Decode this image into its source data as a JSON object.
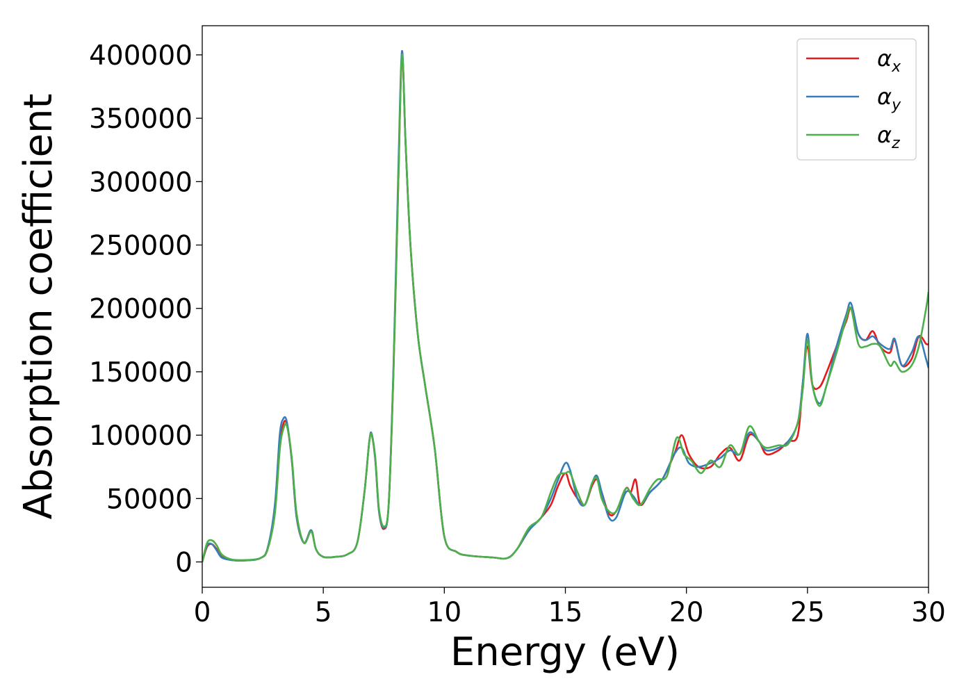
{
  "chart_data": {
    "type": "line",
    "title": "",
    "xlabel": "Energy (eV)",
    "ylabel": "Absorption coefficient",
    "xlim": [
      0,
      30
    ],
    "ylim": [
      -20000,
      423000
    ],
    "xticks": [
      0,
      5,
      10,
      15,
      20,
      25,
      30
    ],
    "yticks": [
      0,
      50000,
      100000,
      150000,
      200000,
      250000,
      300000,
      350000,
      400000
    ],
    "grid": false,
    "legend_position": "top-right",
    "series": [
      {
        "name": "αx",
        "symbol": "α",
        "subscript": "x",
        "color": "#e41a1c",
        "points": [
          [
            0,
            0
          ],
          [
            0.2,
            12000
          ],
          [
            0.4,
            14000
          ],
          [
            0.6,
            10000
          ],
          [
            0.8,
            4000
          ],
          [
            1.2,
            1500
          ],
          [
            1.8,
            1200
          ],
          [
            2.4,
            3000
          ],
          [
            2.7,
            10000
          ],
          [
            3.0,
            40000
          ],
          [
            3.2,
            90000
          ],
          [
            3.35,
            109000
          ],
          [
            3.5,
            108000
          ],
          [
            3.7,
            80000
          ],
          [
            3.9,
            35000
          ],
          [
            4.2,
            15000
          ],
          [
            4.5,
            25000
          ],
          [
            4.7,
            10000
          ],
          [
            5.0,
            4000
          ],
          [
            5.5,
            4000
          ],
          [
            6.0,
            6000
          ],
          [
            6.4,
            15000
          ],
          [
            6.7,
            55000
          ],
          [
            6.9,
            95000
          ],
          [
            7.0,
            100000
          ],
          [
            7.15,
            80000
          ],
          [
            7.3,
            40000
          ],
          [
            7.5,
            26000
          ],
          [
            7.7,
            45000
          ],
          [
            7.9,
            150000
          ],
          [
            8.1,
            300000
          ],
          [
            8.25,
            400000
          ],
          [
            8.4,
            330000
          ],
          [
            8.6,
            250000
          ],
          [
            8.9,
            180000
          ],
          [
            9.2,
            140000
          ],
          [
            9.6,
            90000
          ],
          [
            10.0,
            20000
          ],
          [
            10.5,
            8000
          ],
          [
            11.0,
            5000
          ],
          [
            12.0,
            3500
          ],
          [
            12.6,
            3000
          ],
          [
            13.0,
            10000
          ],
          [
            13.5,
            25000
          ],
          [
            14.0,
            35000
          ],
          [
            14.4,
            45000
          ],
          [
            14.7,
            60000
          ],
          [
            15.0,
            70000
          ],
          [
            15.2,
            60000
          ],
          [
            15.5,
            50000
          ],
          [
            15.8,
            45000
          ],
          [
            16.1,
            60000
          ],
          [
            16.3,
            65000
          ],
          [
            16.5,
            55000
          ],
          [
            16.8,
            38000
          ],
          [
            17.1,
            40000
          ],
          [
            17.5,
            58000
          ],
          [
            17.7,
            55000
          ],
          [
            17.9,
            65000
          ],
          [
            18.1,
            45000
          ],
          [
            18.5,
            55000
          ],
          [
            19.0,
            65000
          ],
          [
            19.5,
            85000
          ],
          [
            19.8,
            100000
          ],
          [
            20.1,
            85000
          ],
          [
            20.5,
            75000
          ],
          [
            21.0,
            75000
          ],
          [
            21.4,
            85000
          ],
          [
            21.8,
            90000
          ],
          [
            22.2,
            80000
          ],
          [
            22.6,
            100000
          ],
          [
            23.0,
            95000
          ],
          [
            23.3,
            85000
          ],
          [
            23.8,
            88000
          ],
          [
            24.2,
            95000
          ],
          [
            24.6,
            100000
          ],
          [
            24.8,
            140000
          ],
          [
            25.0,
            170000
          ],
          [
            25.2,
            140000
          ],
          [
            25.5,
            138000
          ],
          [
            25.8,
            150000
          ],
          [
            26.2,
            170000
          ],
          [
            26.6,
            190000
          ],
          [
            26.8,
            200000
          ],
          [
            27.1,
            180000
          ],
          [
            27.4,
            175000
          ],
          [
            27.7,
            182000
          ],
          [
            28.0,
            170000
          ],
          [
            28.4,
            165000
          ],
          [
            28.6,
            175000
          ],
          [
            28.9,
            155000
          ],
          [
            29.3,
            160000
          ],
          [
            29.6,
            178000
          ],
          [
            29.9,
            172000
          ],
          [
            30.0,
            172000
          ]
        ]
      },
      {
        "name": "αy",
        "symbol": "α",
        "subscript": "y",
        "color": "#377eb8",
        "points": [
          [
            0,
            0
          ],
          [
            0.2,
            13000
          ],
          [
            0.4,
            14000
          ],
          [
            0.6,
            9000
          ],
          [
            0.8,
            3500
          ],
          [
            1.2,
            1500
          ],
          [
            1.8,
            1200
          ],
          [
            2.4,
            3000
          ],
          [
            2.7,
            11000
          ],
          [
            3.0,
            45000
          ],
          [
            3.2,
            100000
          ],
          [
            3.35,
            113000
          ],
          [
            3.5,
            110000
          ],
          [
            3.7,
            80000
          ],
          [
            3.9,
            35000
          ],
          [
            4.2,
            15000
          ],
          [
            4.5,
            25000
          ],
          [
            4.7,
            10000
          ],
          [
            5.0,
            4000
          ],
          [
            5.5,
            4000
          ],
          [
            6.0,
            6000
          ],
          [
            6.4,
            15000
          ],
          [
            6.7,
            55000
          ],
          [
            6.9,
            95000
          ],
          [
            7.0,
            101000
          ],
          [
            7.15,
            80000
          ],
          [
            7.3,
            40000
          ],
          [
            7.5,
            27000
          ],
          [
            7.7,
            45000
          ],
          [
            7.9,
            155000
          ],
          [
            8.1,
            310000
          ],
          [
            8.25,
            403000
          ],
          [
            8.4,
            330000
          ],
          [
            8.6,
            250000
          ],
          [
            8.9,
            180000
          ],
          [
            9.2,
            140000
          ],
          [
            9.6,
            90000
          ],
          [
            10.0,
            20000
          ],
          [
            10.5,
            8000
          ],
          [
            11.0,
            5000
          ],
          [
            12.0,
            3500
          ],
          [
            12.6,
            3000
          ],
          [
            13.0,
            10000
          ],
          [
            13.5,
            25000
          ],
          [
            14.0,
            35000
          ],
          [
            14.4,
            50000
          ],
          [
            14.7,
            65000
          ],
          [
            15.0,
            78000
          ],
          [
            15.2,
            72000
          ],
          [
            15.5,
            50000
          ],
          [
            15.8,
            45000
          ],
          [
            16.1,
            62000
          ],
          [
            16.3,
            68000
          ],
          [
            16.5,
            55000
          ],
          [
            16.8,
            35000
          ],
          [
            17.1,
            35000
          ],
          [
            17.5,
            55000
          ],
          [
            17.8,
            52000
          ],
          [
            18.1,
            45000
          ],
          [
            18.5,
            55000
          ],
          [
            19.0,
            65000
          ],
          [
            19.5,
            85000
          ],
          [
            19.8,
            90000
          ],
          [
            20.1,
            78000
          ],
          [
            20.5,
            75000
          ],
          [
            21.0,
            78000
          ],
          [
            21.4,
            82000
          ],
          [
            21.8,
            88000
          ],
          [
            22.2,
            85000
          ],
          [
            22.6,
            102000
          ],
          [
            23.0,
            95000
          ],
          [
            23.3,
            88000
          ],
          [
            23.8,
            90000
          ],
          [
            24.2,
            95000
          ],
          [
            24.6,
            110000
          ],
          [
            24.8,
            140000
          ],
          [
            25.0,
            180000
          ],
          [
            25.2,
            140000
          ],
          [
            25.5,
            125000
          ],
          [
            25.8,
            140000
          ],
          [
            26.2,
            170000
          ],
          [
            26.6,
            195000
          ],
          [
            26.8,
            204000
          ],
          [
            27.1,
            180000
          ],
          [
            27.4,
            175000
          ],
          [
            27.7,
            178000
          ],
          [
            28.0,
            172000
          ],
          [
            28.4,
            168000
          ],
          [
            28.6,
            176000
          ],
          [
            28.9,
            155000
          ],
          [
            29.3,
            165000
          ],
          [
            29.6,
            178000
          ],
          [
            29.9,
            160000
          ],
          [
            30.0,
            153000
          ]
        ]
      },
      {
        "name": "αz",
        "symbol": "α",
        "subscript": "z",
        "color": "#4daf4a",
        "points": [
          [
            0,
            0
          ],
          [
            0.2,
            15000
          ],
          [
            0.4,
            17000
          ],
          [
            0.6,
            13000
          ],
          [
            0.8,
            6000
          ],
          [
            1.2,
            2000
          ],
          [
            1.8,
            1500
          ],
          [
            2.4,
            3000
          ],
          [
            2.7,
            10000
          ],
          [
            3.0,
            38000
          ],
          [
            3.2,
            88000
          ],
          [
            3.35,
            105000
          ],
          [
            3.5,
            107000
          ],
          [
            3.7,
            82000
          ],
          [
            3.9,
            38000
          ],
          [
            4.2,
            15000
          ],
          [
            4.5,
            24000
          ],
          [
            4.7,
            10000
          ],
          [
            5.0,
            4000
          ],
          [
            5.5,
            4000
          ],
          [
            6.0,
            6000
          ],
          [
            6.4,
            15000
          ],
          [
            6.7,
            55000
          ],
          [
            6.9,
            95000
          ],
          [
            7.0,
            100000
          ],
          [
            7.15,
            82000
          ],
          [
            7.3,
            42000
          ],
          [
            7.5,
            28000
          ],
          [
            7.7,
            45000
          ],
          [
            7.9,
            150000
          ],
          [
            8.1,
            300000
          ],
          [
            8.25,
            400000
          ],
          [
            8.4,
            330000
          ],
          [
            8.6,
            250000
          ],
          [
            8.9,
            180000
          ],
          [
            9.2,
            140000
          ],
          [
            9.6,
            90000
          ],
          [
            10.0,
            20000
          ],
          [
            10.5,
            8000
          ],
          [
            11.0,
            5000
          ],
          [
            12.0,
            3500
          ],
          [
            12.6,
            3000
          ],
          [
            13.0,
            10000
          ],
          [
            13.5,
            27000
          ],
          [
            14.0,
            35000
          ],
          [
            14.4,
            55000
          ],
          [
            14.7,
            68000
          ],
          [
            15.0,
            70000
          ],
          [
            15.2,
            70000
          ],
          [
            15.5,
            55000
          ],
          [
            15.8,
            45000
          ],
          [
            16.1,
            62000
          ],
          [
            16.3,
            66000
          ],
          [
            16.5,
            50000
          ],
          [
            16.8,
            40000
          ],
          [
            17.1,
            40000
          ],
          [
            17.5,
            58000
          ],
          [
            17.8,
            50000
          ],
          [
            18.1,
            45000
          ],
          [
            18.5,
            58000
          ],
          [
            18.8,
            65000
          ],
          [
            19.2,
            68000
          ],
          [
            19.6,
            98000
          ],
          [
            19.9,
            85000
          ],
          [
            20.2,
            80000
          ],
          [
            20.6,
            70000
          ],
          [
            21.0,
            80000
          ],
          [
            21.4,
            75000
          ],
          [
            21.8,
            92000
          ],
          [
            22.2,
            85000
          ],
          [
            22.6,
            107000
          ],
          [
            23.0,
            95000
          ],
          [
            23.3,
            90000
          ],
          [
            23.8,
            92000
          ],
          [
            24.2,
            93000
          ],
          [
            24.6,
            110000
          ],
          [
            24.8,
            135000
          ],
          [
            25.0,
            175000
          ],
          [
            25.2,
            140000
          ],
          [
            25.5,
            123000
          ],
          [
            25.8,
            140000
          ],
          [
            26.2,
            165000
          ],
          [
            26.6,
            192000
          ],
          [
            26.8,
            200000
          ],
          [
            27.1,
            172000
          ],
          [
            27.4,
            170000
          ],
          [
            27.7,
            172000
          ],
          [
            28.0,
            170000
          ],
          [
            28.4,
            155000
          ],
          [
            28.6,
            158000
          ],
          [
            28.9,
            150000
          ],
          [
            29.3,
            155000
          ],
          [
            29.6,
            170000
          ],
          [
            29.9,
            200000
          ],
          [
            30.0,
            213000
          ]
        ]
      }
    ]
  }
}
